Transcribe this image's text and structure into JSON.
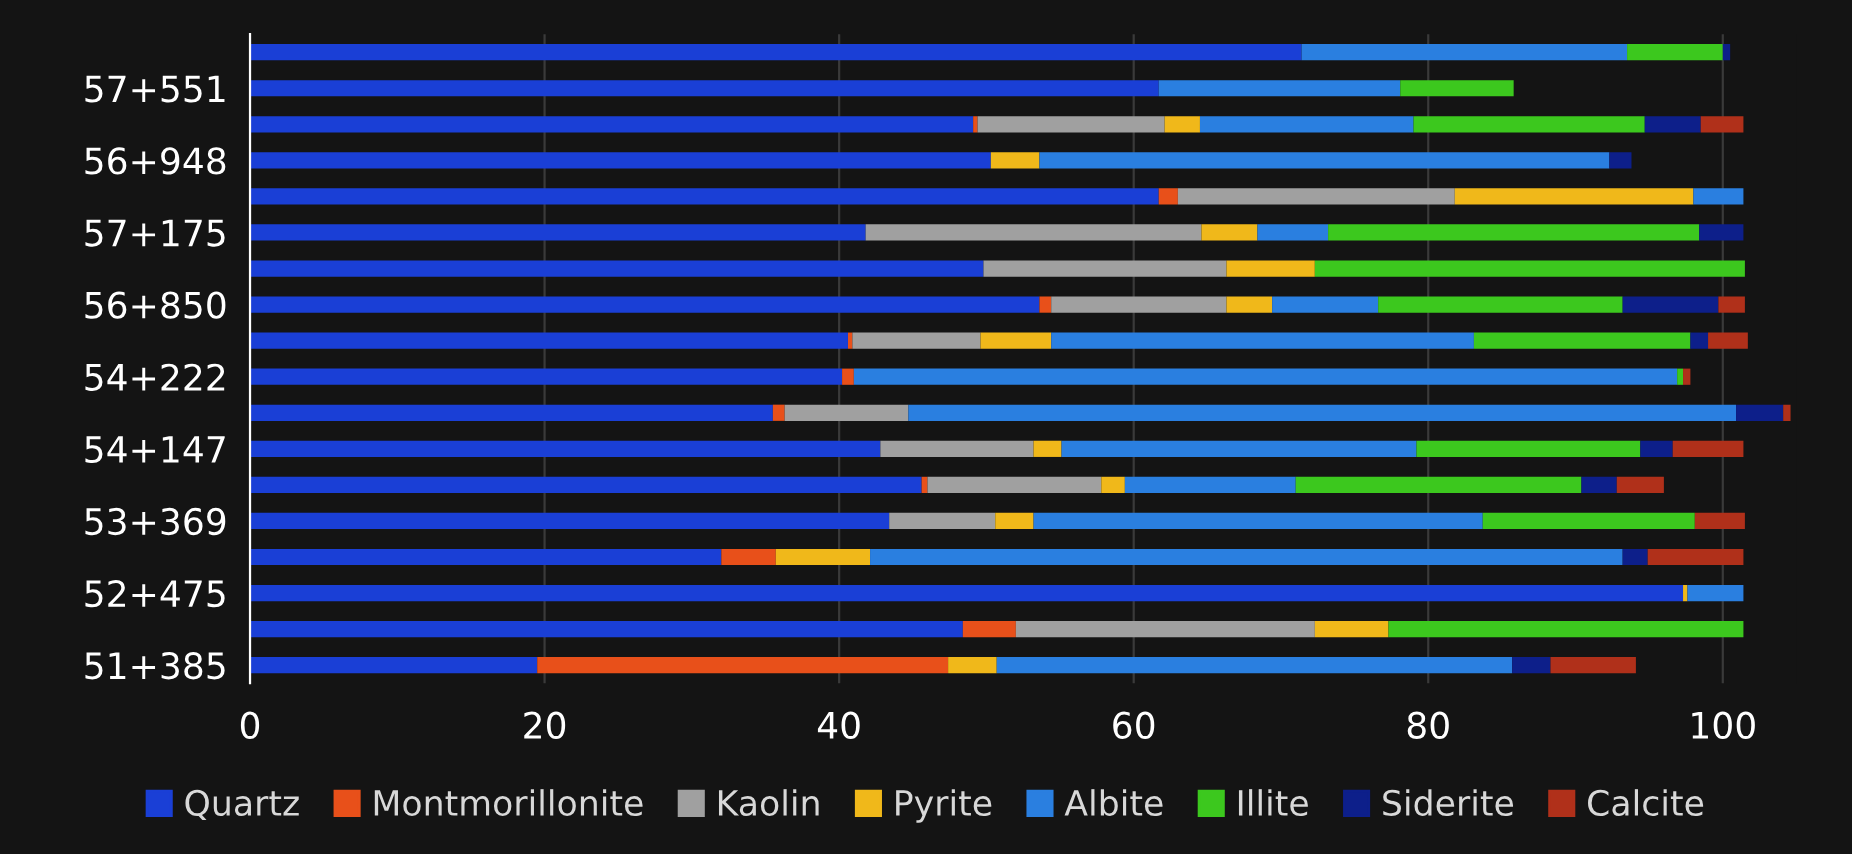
{
  "chart_data": {
    "type": "bar",
    "orientation": "horizontal",
    "stacked": true,
    "categories": [
      null,
      "57+551",
      null,
      "56+948",
      null,
      "57+175",
      null,
      "56+850",
      null,
      "54+222",
      null,
      "54+147",
      null,
      "53+369",
      null,
      "52+475",
      null,
      "51+385"
    ],
    "series": [
      {
        "name": "Quartz",
        "color": "#1a3fd6",
        "values": [
          71.4,
          61.7,
          49.1,
          50.3,
          61.7,
          41.8,
          49.8,
          53.6,
          40.6,
          40.2,
          35.5,
          42.8,
          45.6,
          43.4,
          32.0,
          97.3,
          48.4,
          19.5
        ]
      },
      {
        "name": "Montmorillonite",
        "color": "#e8501a",
        "values": [
          null,
          null,
          0.3,
          null,
          1.3,
          null,
          null,
          0.8,
          0.3,
          0.8,
          0.8,
          null,
          0.4,
          null,
          3.7,
          null,
          3.6,
          27.9
        ]
      },
      {
        "name": "Kaolin",
        "color": "#a0a0a0",
        "values": [
          null,
          null,
          12.7,
          null,
          18.8,
          22.8,
          16.5,
          11.9,
          8.7,
          null,
          8.4,
          10.4,
          11.8,
          7.2,
          null,
          null,
          20.3,
          null
        ]
      },
      {
        "name": "Pyrite",
        "color": "#f0b81a",
        "values": [
          null,
          null,
          2.4,
          3.3,
          16.2,
          3.8,
          6.0,
          3.1,
          4.8,
          null,
          null,
          1.9,
          1.6,
          2.6,
          6.4,
          0.3,
          5.0,
          3.3
        ]
      },
      {
        "name": "Albite",
        "color": "#2a7fe0",
        "values": [
          22.1,
          16.4,
          14.5,
          38.7,
          3.4,
          4.8,
          null,
          7.2,
          28.7,
          55.9,
          56.2,
          24.1,
          11.6,
          30.5,
          51.1,
          3.8,
          null,
          35.0
        ]
      },
      {
        "name": "Illite",
        "color": "#3cc81e",
        "values": [
          6.5,
          7.7,
          15.7,
          null,
          null,
          25.2,
          29.2,
          16.6,
          14.7,
          0.4,
          null,
          15.2,
          19.4,
          14.4,
          null,
          null,
          24.1,
          null
        ]
      },
      {
        "name": "Siderite",
        "color": "#0d1f8a",
        "values": [
          0.5,
          null,
          3.8,
          1.5,
          null,
          3.0,
          null,
          6.5,
          1.2,
          null,
          3.2,
          2.2,
          2.4,
          null,
          1.7,
          null,
          null,
          2.6
        ]
      },
      {
        "name": "Calcite",
        "color": "#b0301a",
        "values": [
          null,
          null,
          2.9,
          null,
          null,
          null,
          null,
          1.8,
          2.7,
          0.5,
          0.5,
          4.8,
          3.2,
          3.4,
          6.5,
          null,
          null,
          5.8
        ]
      }
    ],
    "xlim": [
      0,
      105
    ],
    "xticks": [
      0,
      20,
      40,
      60,
      80,
      100
    ],
    "grid": "x",
    "legend": "bottom"
  }
}
